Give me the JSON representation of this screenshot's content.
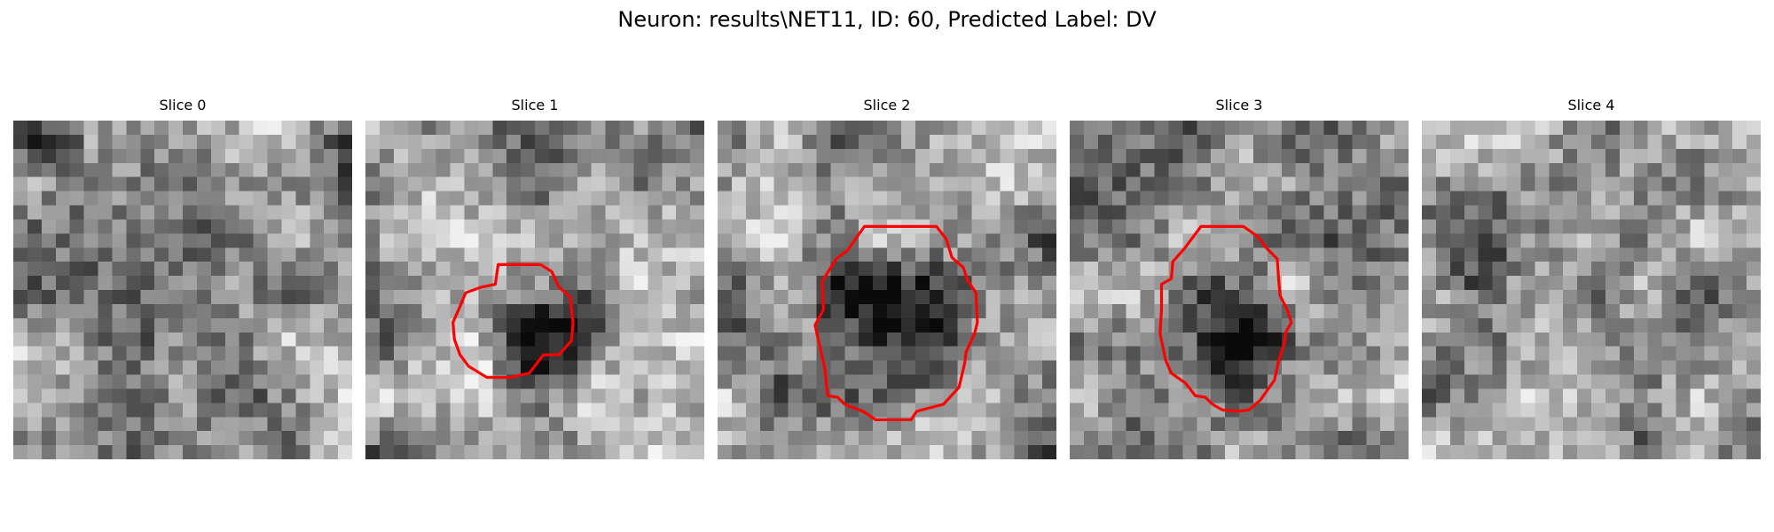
{
  "figure": {
    "title": "Neuron: results\\NET11, ID: 60, Predicted Label: DV"
  },
  "contour_color": "#ff0000",
  "slices": [
    {
      "title": "Slice 0",
      "contour": []
    },
    {
      "title": "Slice 1",
      "contour": [
        [
          11,
          10.2
        ],
        [
          9.4,
          10.2
        ],
        [
          9.2,
          11.6
        ],
        [
          8.2,
          11.8
        ],
        [
          7.1,
          12.2
        ],
        [
          6.6,
          13.4
        ],
        [
          6.2,
          14.3
        ],
        [
          6.3,
          15.5
        ],
        [
          6.7,
          16.6
        ],
        [
          7.3,
          17.4
        ],
        [
          8.6,
          18.2
        ],
        [
          10.2,
          18.2
        ],
        [
          11.6,
          17.9
        ],
        [
          12.6,
          16.6
        ],
        [
          13.7,
          16.6
        ],
        [
          14.6,
          15.6
        ],
        [
          14.7,
          14.3
        ],
        [
          14.5,
          12.5
        ],
        [
          13.7,
          11.8
        ],
        [
          13.2,
          10.7
        ],
        [
          12.4,
          10.2
        ]
      ]
    },
    {
      "title": "Slice 2",
      "contour": [
        [
          10.4,
          7.5
        ],
        [
          9.2,
          9.2
        ],
        [
          8.4,
          9.8
        ],
        [
          7.4,
          11.4
        ],
        [
          7.5,
          13.4
        ],
        [
          6.9,
          14.5
        ],
        [
          7.2,
          15.8
        ],
        [
          7.6,
          17.6
        ],
        [
          7.8,
          19.5
        ],
        [
          8.5,
          19.6
        ],
        [
          9,
          20.1
        ],
        [
          10.3,
          20.6
        ],
        [
          11.2,
          21.2
        ],
        [
          13.7,
          21.2
        ],
        [
          14.1,
          20.6
        ],
        [
          16,
          20.1
        ],
        [
          17.1,
          18.9
        ],
        [
          17.5,
          17.2
        ],
        [
          17.6,
          16.4
        ],
        [
          18.2,
          15.1
        ],
        [
          18.4,
          14.3
        ],
        [
          18.3,
          12.2
        ],
        [
          17.7,
          11.3
        ],
        [
          17.4,
          10.4
        ],
        [
          16.6,
          9.7
        ],
        [
          16.2,
          8.4
        ],
        [
          15.5,
          7.5
        ],
        [
          12.5,
          7.5
        ]
      ]
    },
    {
      "title": "Slice 3",
      "contour": [
        [
          9.3,
          7.5
        ],
        [
          8.1,
          9.1
        ],
        [
          7.3,
          10
        ],
        [
          7.2,
          11.2
        ],
        [
          6.5,
          11.6
        ],
        [
          6.5,
          13.4
        ],
        [
          6.4,
          15.1
        ],
        [
          6.8,
          17
        ],
        [
          7.2,
          17.9
        ],
        [
          8.2,
          18.6
        ],
        [
          8.9,
          19.5
        ],
        [
          9.6,
          19.6
        ],
        [
          10.1,
          20.1
        ],
        [
          10.8,
          20.5
        ],
        [
          11.9,
          20.6
        ],
        [
          12.7,
          20.5
        ],
        [
          13.5,
          19.8
        ],
        [
          14,
          19.1
        ],
        [
          14.5,
          18.4
        ],
        [
          14.8,
          17
        ],
        [
          15.2,
          15.8
        ],
        [
          15.3,
          15
        ],
        [
          15.7,
          14.3
        ],
        [
          15.4,
          13.4
        ],
        [
          14.9,
          12.4
        ],
        [
          14.8,
          11.3
        ],
        [
          14.7,
          9.8
        ],
        [
          14,
          9.1
        ],
        [
          13.3,
          8.2
        ],
        [
          12.3,
          7.5
        ],
        [
          10.5,
          7.5
        ]
      ]
    },
    {
      "title": "Slice 4",
      "contour": []
    }
  ]
}
